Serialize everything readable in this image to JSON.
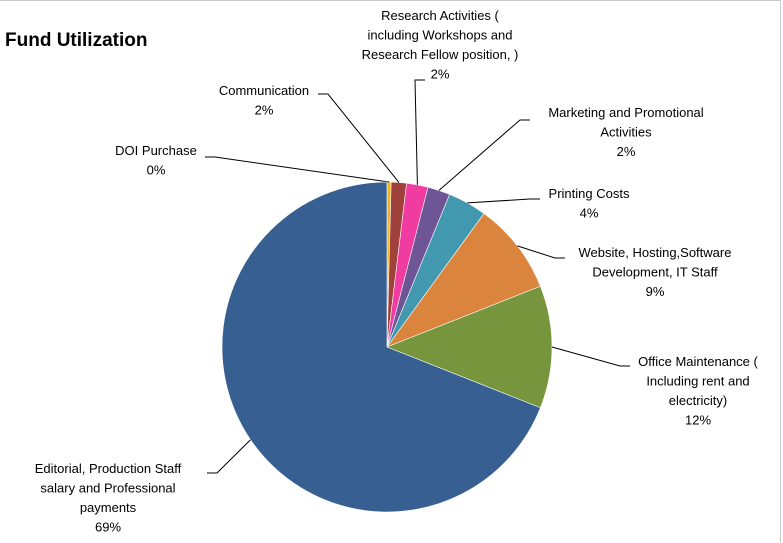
{
  "chart_data": {
    "type": "pie",
    "title": "Fund Utilization",
    "start": "top, clockwise",
    "slices": [
      {
        "label": [
          "DOI Purchase"
        ],
        "pct_label": "0%",
        "value": 0.4,
        "color": "#f2b31f"
      },
      {
        "label": [
          "Communication"
        ],
        "pct_label": "2%",
        "value": 1.5,
        "color": "#a0413c"
      },
      {
        "label": [
          "Research Activities (",
          "including Workshops  and",
          "Research Fellow position, )"
        ],
        "pct_label": "2%",
        "value": 2.1,
        "color": "#f03ca0"
      },
      {
        "label": [
          "Marketing and Promotional",
          "Activities"
        ],
        "pct_label": "2%",
        "value": 2.2,
        "color": "#6d5596"
      },
      {
        "label": [
          "Printing Costs"
        ],
        "pct_label": "4%",
        "value": 3.8,
        "color": "#4198af"
      },
      {
        "label": [
          "Website, Hosting,Software",
          "Development, IT Staff"
        ],
        "pct_label": "9%",
        "value": 9,
        "color": "#db843d"
      },
      {
        "label": [
          "Office Maintenance (",
          "Including rent and",
          "electricity)"
        ],
        "pct_label": "12%",
        "value": 12,
        "color": "#77953d"
      },
      {
        "label": [
          "Editorial, Production Staff",
          "salary and Professional",
          "payments"
        ],
        "pct_label": "69%",
        "value": 69,
        "color": "#375f91"
      }
    ]
  }
}
